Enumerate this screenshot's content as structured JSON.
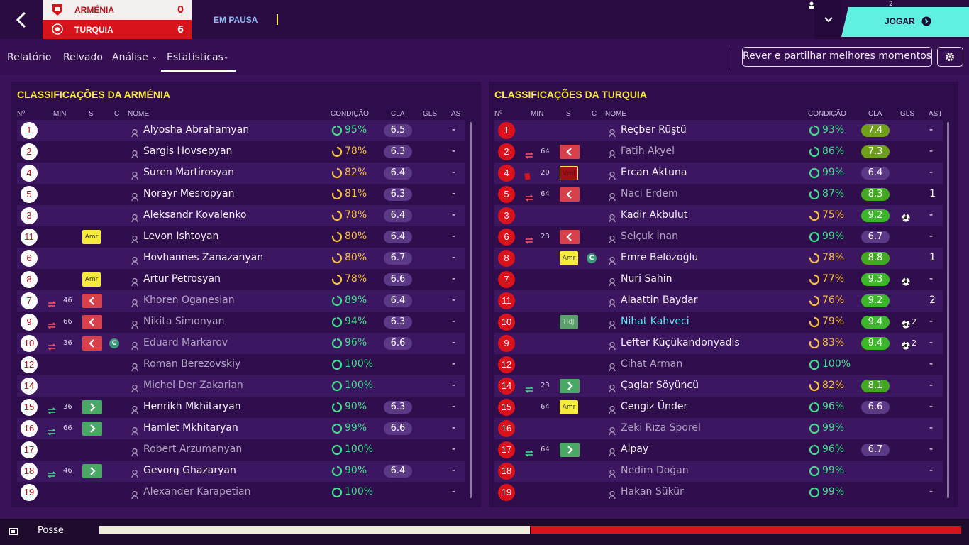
{
  "header": {
    "home_team": "ARMÉNIA",
    "home_score": "0",
    "away_team": "TURQUIA",
    "away_score": "6",
    "status": "EM PAUSA",
    "manager_count": "2",
    "play_button": "JOGAR"
  },
  "nav": {
    "tabs": [
      "Relatório",
      "Relvado",
      "Análise",
      "Estatísticas"
    ],
    "highlights_button": "Rever e partilhar melhores momentos"
  },
  "columns": [
    "Nº",
    "MIN",
    "S",
    "C",
    "NOME",
    "CONDIÇÃO",
    "CLA",
    "GLS",
    "AST"
  ],
  "panels": [
    {
      "title": "CLASSIFICAÇÕES DA ARMÉNIA",
      "rating_style": "purple",
      "rows": [
        {
          "n": "1",
          "name": "Alyosha Abrahamyan",
          "cond": "95%",
          "cla": "6.5",
          "ast": "-"
        },
        {
          "n": "2",
          "name": "Sargis Hovsepyan",
          "cond": "78%",
          "cla": "6.3",
          "ast": "-"
        },
        {
          "n": "4",
          "name": "Suren Martirosyan",
          "cond": "82%",
          "cla": "6.4",
          "ast": "-"
        },
        {
          "n": "5",
          "name": "Norayr Mesropyan",
          "cond": "81%",
          "cla": "6.3",
          "ast": "-"
        },
        {
          "n": "3",
          "name": "Aleksandr Kovalenko",
          "cond": "78%",
          "cla": "6.4",
          "ast": "-"
        },
        {
          "n": "11",
          "card": "Amr",
          "name": "Levon Ishtoyan",
          "cond": "80%",
          "cla": "6.4",
          "ast": "-"
        },
        {
          "n": "6",
          "name": "Hovhannes Zanazanyan",
          "cond": "80%",
          "cla": "6.7",
          "ast": "-"
        },
        {
          "n": "8",
          "card": "Amr",
          "name": "Artur Petrosyan",
          "cond": "78%",
          "cla": "6.6",
          "ast": "-"
        },
        {
          "n": "7",
          "min": "46",
          "sub": "out",
          "name": "Khoren Oganesian",
          "cond": "89%",
          "cla": "6.4",
          "ast": "-",
          "dim": true
        },
        {
          "n": "9",
          "min": "66",
          "sub": "out",
          "name": "Nikita Simonyan",
          "cond": "94%",
          "cla": "6.3",
          "ast": "-",
          "dim": true
        },
        {
          "n": "10",
          "min": "36",
          "sub": "out",
          "captain": "C",
          "name": "Eduard Markarov",
          "cond": "96%",
          "cla": "6.6",
          "ast": "-",
          "dim": true
        },
        {
          "n": "12",
          "name": "Roman Berezovskiy",
          "cond": "100%",
          "ast": "-",
          "dim": true
        },
        {
          "n": "14",
          "name": "Michel Der Zakarian",
          "cond": "100%",
          "ast": "-",
          "dim": true
        },
        {
          "n": "15",
          "min": "36",
          "sub": "in",
          "name": "Henrikh Mkhitaryan",
          "cond": "90%",
          "cla": "6.3",
          "ast": "-"
        },
        {
          "n": "16",
          "min": "66",
          "sub": "in",
          "name": "Hamlet Mkhitaryan",
          "cond": "99%",
          "cla": "6.6",
          "ast": "-"
        },
        {
          "n": "17",
          "name": "Robert Arzumanyan",
          "cond": "100%",
          "ast": "-",
          "dim": true
        },
        {
          "n": "18",
          "min": "46",
          "sub": "in",
          "name": "Gevorg Ghazaryan",
          "cond": "90%",
          "cla": "6.4",
          "ast": "-"
        },
        {
          "n": "19",
          "name": "Alexander Karapetian",
          "cond": "100%",
          "ast": "-",
          "dim": true
        }
      ]
    },
    {
      "title": "CLASSIFICAÇÕES DA TURQUIA",
      "rating_style": "scale",
      "rows": [
        {
          "n": "1",
          "name": "Reçber Rüştü",
          "cond": "93%",
          "cla": "7.4",
          "ast": "-"
        },
        {
          "n": "2",
          "min": "64",
          "sub": "out",
          "name": "Fatih Akyel",
          "cond": "86%",
          "cla": "7.3",
          "ast": "-",
          "dim": true
        },
        {
          "n": "4",
          "min": "20",
          "event": "red-card",
          "card": "Vml",
          "card_color": "red",
          "name": "Ercan Aktuna",
          "cond": "99%",
          "cla": "6.4",
          "ast": "-"
        },
        {
          "n": "5",
          "min": "64",
          "sub": "out",
          "name": "Naci Erdem",
          "cond": "87%",
          "cla": "8.3",
          "ast": "1",
          "dim": true
        },
        {
          "n": "3",
          "name": "Kadir Akbulut",
          "cond": "75%",
          "cla": "9.2",
          "goals": 1,
          "ast": "-"
        },
        {
          "n": "6",
          "min": "23",
          "sub": "out",
          "name": "Selçuk İnan",
          "cond": "99%",
          "cla": "6.7",
          "ast": "-",
          "dim": true
        },
        {
          "n": "8",
          "card": "Amr",
          "captain": "C",
          "name": "Emre Belözoğlu",
          "cond": "78%",
          "cla": "8.8",
          "ast": "1"
        },
        {
          "n": "7",
          "name": "Nuri Sahin",
          "cond": "77%",
          "cla": "9.3",
          "goals": 1,
          "ast": "-"
        },
        {
          "n": "11",
          "name": "Alaattin Baydar",
          "cond": "76%",
          "cla": "9.2",
          "ast": "2"
        },
        {
          "n": "10",
          "card": "HdJ",
          "card_color": "green",
          "name": "Nihat Kahveci",
          "highlight": true,
          "cond": "79%",
          "cla": "9.4",
          "goals": 2,
          "ast": "-"
        },
        {
          "n": "9",
          "name": "Lefter Küçükandonyadis",
          "cond": "83%",
          "cla": "9.4",
          "goals": 2,
          "ast": "-"
        },
        {
          "n": "12",
          "name": "Cihat Arman",
          "cond": "100%",
          "ast": "-",
          "dim": true
        },
        {
          "n": "14",
          "min": "23",
          "sub": "in",
          "name": "Çaglar Söyüncü",
          "cond": "82%",
          "cla": "8.1",
          "ast": "-"
        },
        {
          "n": "15",
          "min": "64",
          "card": "Amr",
          "name": "Cengiz Ünder",
          "cond": "96%",
          "cla": "6.6",
          "ast": "-"
        },
        {
          "n": "16",
          "name": "Zeki Rıza Sporel",
          "cond": "99%",
          "ast": "-",
          "dim": true
        },
        {
          "n": "17",
          "min": "64",
          "sub": "in",
          "name": "Alpay",
          "cond": "96%",
          "cla": "6.7",
          "ast": "-"
        },
        {
          "n": "18",
          "name": "Nedim Doğan",
          "cond": "99%",
          "ast": "-",
          "dim": true
        },
        {
          "n": "19",
          "name": "Hakan Sükür",
          "cond": "99%",
          "ast": "-",
          "dim": true
        }
      ]
    }
  ],
  "footer": {
    "label": "Posse",
    "possession": {
      "home": 50,
      "away": 50
    }
  }
}
